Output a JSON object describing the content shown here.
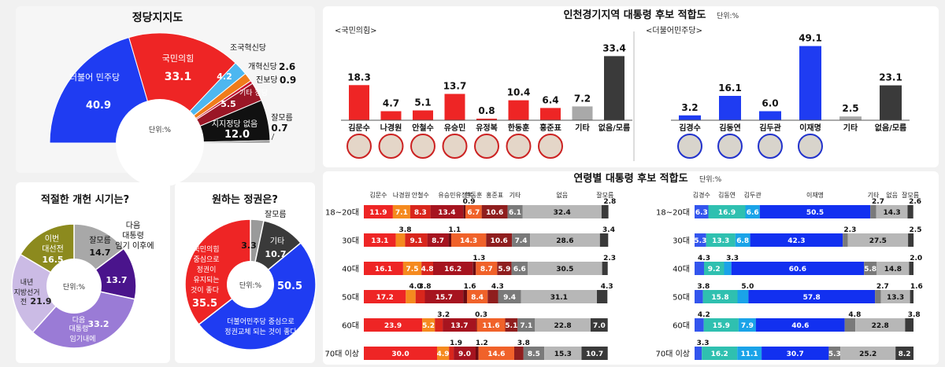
{
  "party": {
    "title": "정당지지도",
    "unit": "단위:%",
    "chart_data": {
      "type": "pie",
      "title": "정당지지도",
      "unit": "%",
      "slices": [
        {
          "name": "더불어 민주당",
          "value": 40.9,
          "color": "#1f3cf2"
        },
        {
          "name": "국민의힘",
          "value": 33.1,
          "color": "#ee2525"
        },
        {
          "name": "조국혁신당",
          "value": 4.2,
          "color": "#4db7f0"
        },
        {
          "name": "개혁신당",
          "value": 2.6,
          "color": "#f07c1b"
        },
        {
          "name": "진보당",
          "value": 0.9,
          "color": "#c8102e"
        },
        {
          "name": "기타 정당",
          "value": 5.5,
          "color": "#9a1626"
        },
        {
          "name": "지지정당 없음",
          "value": 12.0,
          "color": "#111111"
        },
        {
          "name": "잘모름",
          "value": 0.7,
          "color": "#888888"
        }
      ]
    },
    "labels": {
      "dem_name": "더불어 민주당",
      "dem_val": "40.9",
      "ppp_name": "국민의힘",
      "ppp_val": "33.1",
      "jo_name": "조국혁신당",
      "jo_val": "4.2",
      "reform_name": "개혁신당",
      "reform_val": "2.6",
      "prog_name": "진보당",
      "prog_val": "0.9",
      "etc_name": "기타 정당",
      "etc_val": "5.5",
      "none_name": "지지정당 없음",
      "none_val": "12.0",
      "dk_name": "잘모름",
      "dk_val": "0.7"
    }
  },
  "reform": {
    "title": "적절한 개헌 시기는?",
    "unit": "단위:%",
    "chart_data": {
      "type": "pie",
      "title": "적절한 개헌 시기는?",
      "slices": [
        {
          "name": "잘모름",
          "value": 14.7,
          "color": "#a8a8a8"
        },
        {
          "name": "다음 대통령 임기 이후에",
          "value": 13.7,
          "color": "#4a148c"
        },
        {
          "name": "다음 대통령 임기내에",
          "value": 33.2,
          "color": "#9a7bd6"
        },
        {
          "name": "내년 지방선거 전",
          "value": 21.9,
          "color": "#cbbbe5"
        },
        {
          "name": "이번 대선전",
          "value": 16.5,
          "color": "#8c8a1e"
        }
      ]
    },
    "labels": {
      "dk_name": "잘모름",
      "dk_val": "14.7",
      "after_l1": "다음",
      "after_l2": "대통령",
      "after_l3": "임기 이후에",
      "after_val": "13.7",
      "within_l1": "다음",
      "within_l2": "대통령",
      "within_l3": "임기내에",
      "within_val": "33.2",
      "local_l1": "내년",
      "local_l2": "지방선거",
      "local_l3": "전",
      "local_val": "21.9",
      "now_l1": "이번",
      "now_l2": "대선전",
      "now_val": "16.5"
    }
  },
  "regime": {
    "title": "원하는 정권은?",
    "unit": "단위:%",
    "chart_data": {
      "type": "pie",
      "title": "원하는 정권은?",
      "slices": [
        {
          "name": "잘모름",
          "value": 3.3,
          "color": "#9a9a9a"
        },
        {
          "name": "기타",
          "value": 10.7,
          "color": "#3a3a3a"
        },
        {
          "name": "더불어민주당 중심으로 정권교체 되는 것이 좋다",
          "value": 50.5,
          "color": "#1f3cf2"
        },
        {
          "name": "국민의힘 중심으로 정권이 유지되는 것이 좋다",
          "value": 35.5,
          "color": "#ee2525"
        }
      ]
    },
    "labels": {
      "dk_name": "잘모름",
      "dk_val": "3.3",
      "etc_name": "기타",
      "etc_val": "10.7",
      "dem_val": "50.5",
      "dem_l1": "더불어민주당 중심으로",
      "dem_l2": "정권교체 되는 것이 좋다",
      "ppp_l1": "국민의힘",
      "ppp_l2": "중심으로",
      "ppp_l3": "정권이",
      "ppp_l4": "유지되는",
      "ppp_l5": "것이 좋다",
      "ppp_val": "35.5"
    }
  },
  "incheon": {
    "title": "인천경기지역 대통령 후보 적합도",
    "unit": "단위:%",
    "ppp_group": "<국민의힘>",
    "dem_group": "<더불어민주당>",
    "chart_data": [
      {
        "type": "bar",
        "title": "국민의힘",
        "categories": [
          "김문수",
          "나경원",
          "안철수",
          "유승민",
          "유정복",
          "한동훈",
          "홍준표",
          "기타",
          "없음/모름"
        ],
        "values": [
          18.3,
          4.7,
          5.1,
          13.7,
          0.8,
          10.4,
          6.4,
          7.2,
          33.4
        ],
        "colors": [
          "#ee2525",
          "#ee2525",
          "#ee2525",
          "#ee2525",
          "#ee2525",
          "#ee2525",
          "#ee2525",
          "#a9a9a9",
          "#3a3a3a"
        ],
        "ylim": [
          0,
          36
        ]
      },
      {
        "type": "bar",
        "title": "더불어민주당",
        "categories": [
          "김경수",
          "김동연",
          "김두관",
          "이재명",
          "기타",
          "없음/모름"
        ],
        "values": [
          3.2,
          16.1,
          6.0,
          49.1,
          2.5,
          23.1
        ],
        "colors": [
          "#1f3cf2",
          "#1f3cf2",
          "#1f3cf2",
          "#1f3cf2",
          "#a9a9a9",
          "#3a3a3a"
        ],
        "ylim": [
          0,
          52
        ]
      }
    ],
    "ppp_labels": [
      "18.3",
      "4.7",
      "5.1",
      "13.7",
      "0.8",
      "10.4",
      "6.4",
      "7.2",
      "33.4"
    ],
    "ppp_names": [
      "김문수",
      "나경원",
      "안철수",
      "유승민",
      "유정복",
      "한동훈",
      "홍준표",
      "기타",
      "없음/모름"
    ],
    "dem_labels": [
      "3.2",
      "16.1",
      "6.0",
      "49.1",
      "2.5",
      "23.1"
    ],
    "dem_names": [
      "김경수",
      "김동연",
      "김두관",
      "이재명",
      "기타",
      "없음/모름"
    ]
  },
  "age": {
    "title": "연령별 대통령 후보 적합도",
    "unit": "단위:%",
    "chart_data": [
      {
        "type": "bar",
        "stacked": true,
        "orientation": "horizontal",
        "title": "국민의힘",
        "categories": [
          "18~20대",
          "30대",
          "40대",
          "50대",
          "60대",
          "70대 이상"
        ],
        "series": [
          {
            "name": "김문수",
            "color": "#ee2525",
            "values": [
              11.9,
              13.1,
              16.1,
              17.2,
              23.9,
              30.0
            ]
          },
          {
            "name": "나경원",
            "color": "#f58a1f",
            "values": [
              7.1,
              3.8,
              7.5,
              4.0,
              5.2,
              4.9
            ]
          },
          {
            "name": "안철수",
            "color": "#d9261c",
            "values": [
              8.3,
              9.1,
              4.8,
              3.8,
              3.2,
              1.9
            ]
          },
          {
            "name": "유승민",
            "color": "#a6141f",
            "values": [
              13.4,
              8.7,
              16.2,
              15.7,
              13.7,
              9.0
            ]
          },
          {
            "name": "유정복",
            "color": "#6b0b12",
            "values": [
              0.9,
              1.1,
              1.3,
              1.6,
              0.3,
              1.2
            ]
          },
          {
            "name": "한동훈",
            "color": "#f0622a",
            "values": [
              6.7,
              14.3,
              8.7,
              8.4,
              11.6,
              14.6
            ]
          },
          {
            "name": "홍준표",
            "color": "#8f1e1e",
            "values": [
              10.6,
              10.6,
              5.9,
              4.3,
              5.1,
              3.8
            ]
          },
          {
            "name": "기타",
            "color": "#7a7a7a",
            "values": [
              6.1,
              7.4,
              6.6,
              9.4,
              7.1,
              8.5
            ]
          },
          {
            "name": "없음",
            "color": "#b7b7b7",
            "values": [
              32.4,
              28.6,
              30.5,
              31.1,
              22.8,
              15.3
            ]
          },
          {
            "name": "잘모름",
            "color": "#3a3a3a",
            "values": [
              2.8,
              3.4,
              2.3,
              4.3,
              7.0,
              10.7
            ]
          }
        ]
      },
      {
        "type": "bar",
        "stacked": true,
        "orientation": "horizontal",
        "title": "더불어민주당",
        "categories": [
          "18~20대",
          "30대",
          "40대",
          "50대",
          "60대",
          "70대 이상"
        ],
        "series": [
          {
            "name": "김경수",
            "color": "#3355ee",
            "values": [
              6.3,
              5.3,
              4.3,
              3.8,
              4.2,
              3.3
            ]
          },
          {
            "name": "김동연",
            "color": "#2fc0b0",
            "values": [
              16.9,
              13.3,
              9.2,
              15.8,
              15.9,
              16.2
            ]
          },
          {
            "name": "김두관",
            "color": "#1aa3e8",
            "values": [
              6.6,
              6.8,
              3.3,
              5.0,
              7.9,
              11.1
            ]
          },
          {
            "name": "이재명",
            "color": "#1230f0",
            "values": [
              50.5,
              42.3,
              60.6,
              57.8,
              40.6,
              30.7
            ]
          },
          {
            "name": "기타",
            "color": "#7a7a7a",
            "values": [
              2.7,
              2.3,
              5.8,
              2.7,
              4.8,
              5.3
            ]
          },
          {
            "name": "없음",
            "color": "#b7b7b7",
            "values": [
              14.3,
              27.5,
              14.8,
              13.3,
              22.8,
              25.2
            ]
          },
          {
            "name": "잘모름",
            "color": "#3a3a3a",
            "values": [
              2.6,
              2.5,
              2.0,
              1.6,
              3.8,
              8.2
            ]
          }
        ]
      }
    ]
  }
}
